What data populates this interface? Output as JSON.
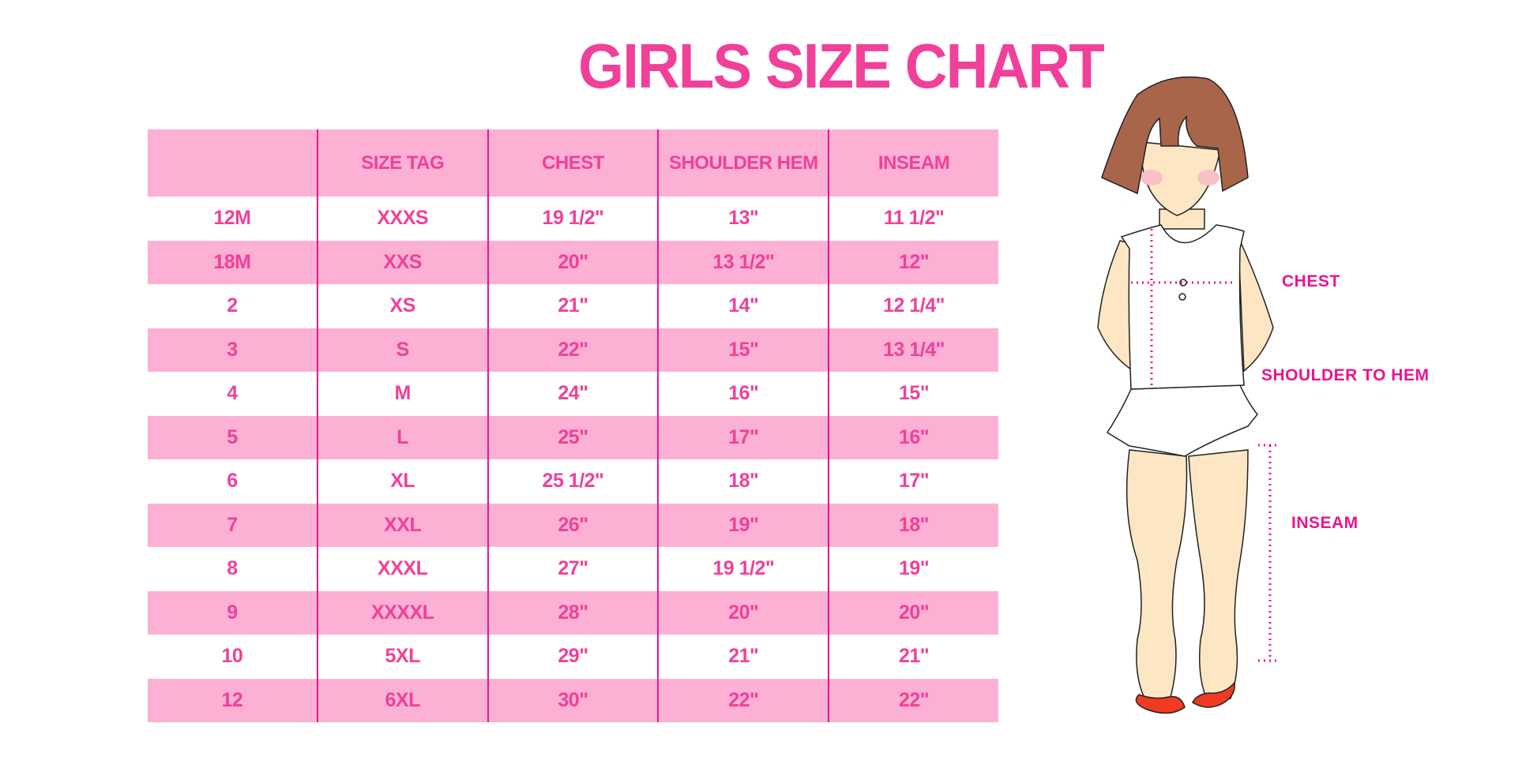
{
  "title": "GIRLS SIZE CHART",
  "table": {
    "headers": [
      "",
      "SIZE TAG",
      "CHEST",
      "SHOULDER HEM",
      "INSEAM"
    ],
    "rows": [
      [
        "12M",
        "XXXS",
        "19 1/2\"",
        "13\"",
        "11 1/2\""
      ],
      [
        "18M",
        "XXS",
        "20\"",
        "13 1/2\"",
        "12\""
      ],
      [
        "2",
        "XS",
        "21\"",
        "14\"",
        "12 1/4\""
      ],
      [
        "3",
        "S",
        "22\"",
        "15\"",
        "13 1/4\""
      ],
      [
        "4",
        "M",
        "24\"",
        "16\"",
        "15\""
      ],
      [
        "5",
        "L",
        "25\"",
        "17\"",
        "16\""
      ],
      [
        "6",
        "XL",
        "25 1/2\"",
        "18\"",
        "17\""
      ],
      [
        "7",
        "XXL",
        "26\"",
        "19\"",
        "18\""
      ],
      [
        "8",
        "XXXL",
        "27\"",
        "19 1/2\"",
        "19\""
      ],
      [
        "9",
        "XXXXL",
        "28\"",
        "20\"",
        "20\""
      ],
      [
        "10",
        "5XL",
        "29\"",
        "21\"",
        "21\""
      ],
      [
        "12",
        "6XL",
        "30\"",
        "22\"",
        "22\""
      ]
    ]
  },
  "figure": {
    "labels": {
      "chest": "CHEST",
      "shoulder_to_hem": "SHOULDER TO HEM",
      "inseam": "INSEAM"
    }
  },
  "colors": {
    "text_pink": "#f0409a",
    "row_pink": "#fcb0d4",
    "divider": "#e8178f",
    "hair": "#a8654a",
    "skin": "#fde6c4",
    "shoes": "#f03a22"
  }
}
